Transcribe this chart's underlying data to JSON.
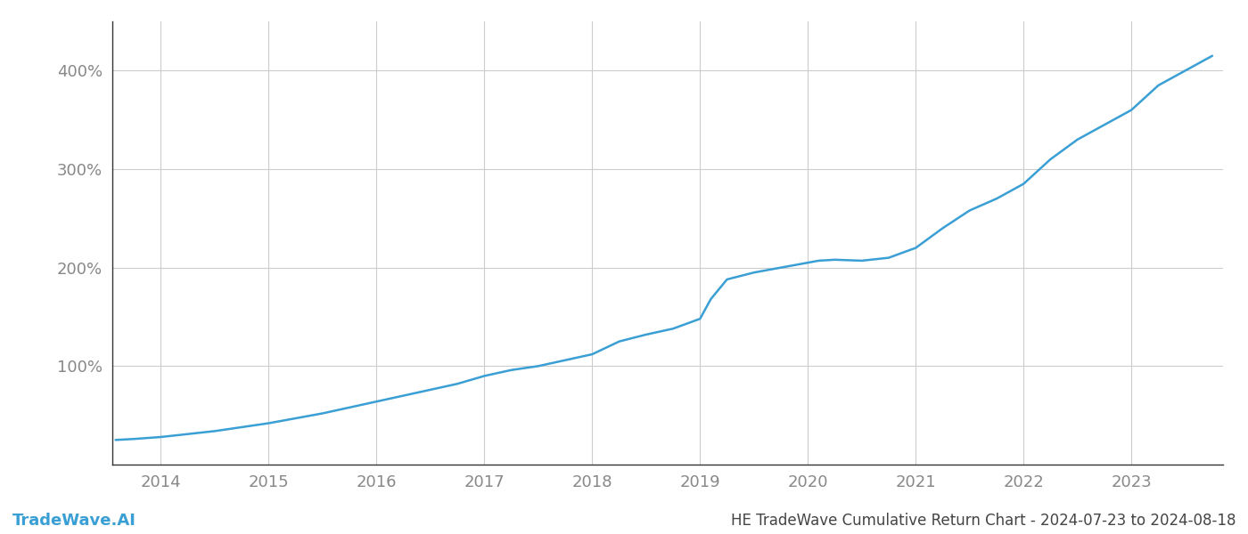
{
  "title": "HE TradeWave Cumulative Return Chart - 2024-07-23 to 2024-08-18",
  "watermark": "TradeWave.AI",
  "line_color": "#3a9fd4",
  "background_color": "#ffffff",
  "grid_color": "#cccccc",
  "x_years": [
    2014,
    2015,
    2016,
    2017,
    2018,
    2019,
    2020,
    2021,
    2022,
    2023
  ],
  "x_values": [
    2013.58,
    2013.75,
    2014.0,
    2014.25,
    2014.5,
    2014.75,
    2015.0,
    2015.25,
    2015.5,
    2015.75,
    2016.0,
    2016.25,
    2016.5,
    2016.75,
    2017.0,
    2017.25,
    2017.5,
    2017.75,
    2018.0,
    2018.25,
    2018.5,
    2018.75,
    2019.0,
    2019.1,
    2019.25,
    2019.5,
    2019.75,
    2020.0,
    2020.1,
    2020.25,
    2020.5,
    2020.75,
    2021.0,
    2021.25,
    2021.5,
    2021.75,
    2022.0,
    2022.25,
    2022.5,
    2022.75,
    2023.0,
    2023.25,
    2023.5,
    2023.75
  ],
  "y_values": [
    25,
    26,
    28,
    31,
    34,
    38,
    42,
    47,
    52,
    58,
    64,
    70,
    76,
    82,
    90,
    96,
    100,
    106,
    112,
    125,
    132,
    138,
    148,
    168,
    188,
    195,
    200,
    205,
    207,
    208,
    207,
    210,
    220,
    240,
    258,
    270,
    285,
    310,
    330,
    345,
    360,
    385,
    400,
    415
  ],
  "ylim": [
    0,
    450
  ],
  "yticks": [
    100,
    200,
    300,
    400
  ],
  "ytick_labels": [
    "100%",
    "200%",
    "300%",
    "400%"
  ],
  "xlim": [
    2013.55,
    2023.85
  ],
  "tick_color": "#888888",
  "spine_color": "#333333",
  "label_fontsize": 13,
  "watermark_fontsize": 13,
  "title_fontsize": 12,
  "line_width": 1.8
}
